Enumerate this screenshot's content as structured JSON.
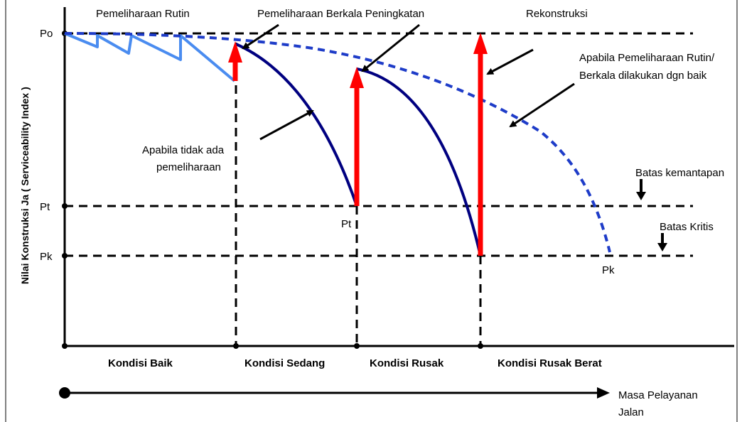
{
  "y_axis_label": "Nilai Konstruksi Ja ( Serviceability Index )",
  "y_levels": {
    "po": "Po",
    "pt": "Pt",
    "pk": "Pk"
  },
  "top_labels": {
    "rutin": "Pemeliharaan Rutin",
    "berkala": "Pemeliharaan Berkala Peningkatan",
    "rekonstruksi": "Rekonstruksi"
  },
  "annotations": {
    "baik_line1": "Apabila Pemeliharaan Rutin/",
    "baik_line2": "Berkala dilakukan dgn baik",
    "tidak_line1": "Apabila tidak ada",
    "tidak_line2": "pemeliharaan",
    "batas_kemantapan": "Batas kemantapan",
    "batas_kritis": "Batas Kritis",
    "pt_point": "Pt",
    "pk_point": "Pk"
  },
  "conditions": {
    "baik": "Kondisi Baik",
    "sedang": "Kondisi Sedang",
    "rusak": "Kondisi Rusak",
    "rusak_berat": "Kondisi Rusak Berat"
  },
  "x_axis_label_line1": "Masa Pelayanan",
  "x_axis_label_line2": "Jalan",
  "colors": {
    "dark_curve": "#000080",
    "light_curve": "#4a8cf0",
    "arrow_red": "#ff0000",
    "dashed_blue": "#1e3cc8"
  }
}
